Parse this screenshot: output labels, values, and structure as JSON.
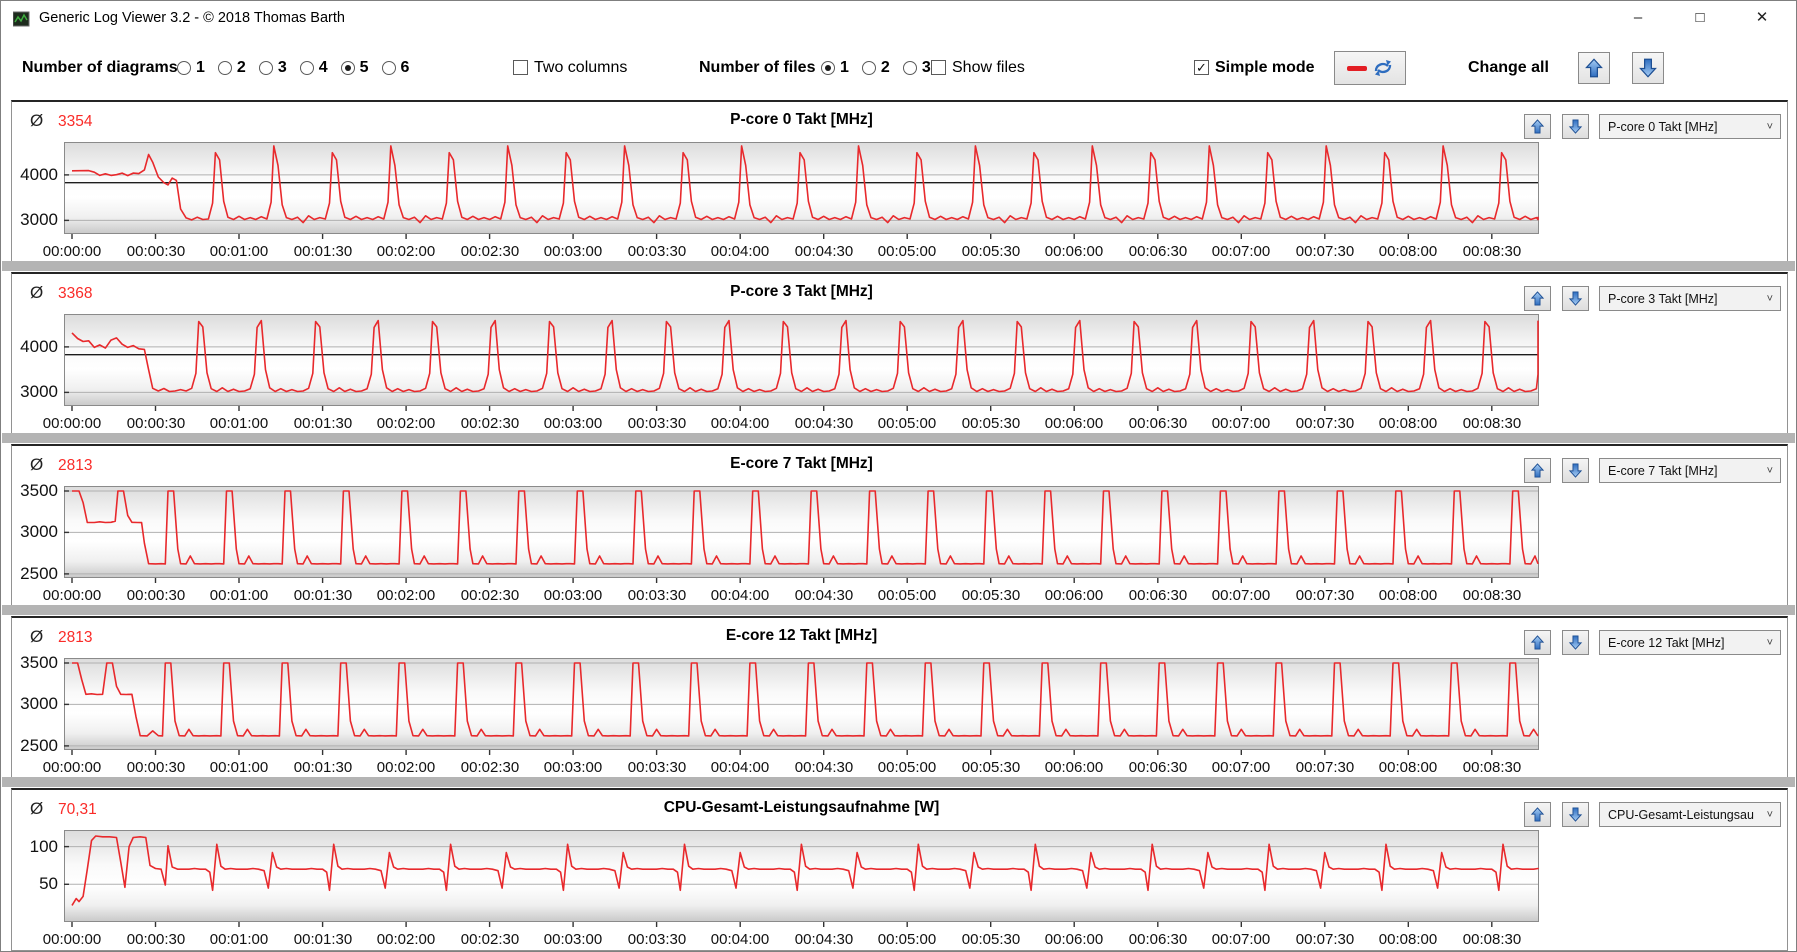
{
  "window": {
    "title": "Generic Log Viewer 3.2 - © 2018 Thomas Barth",
    "controls": {
      "minimize": "–",
      "maximize": "□",
      "close": "✕"
    }
  },
  "toolbar": {
    "diagrams_label": "Number of diagrams",
    "diagram_options": [
      "1",
      "2",
      "3",
      "4",
      "5",
      "6"
    ],
    "diagram_selected": "5",
    "two_columns_label": "Two columns",
    "two_columns_checked": false,
    "files_label": "Number of files",
    "file_options": [
      "1",
      "2",
      "3"
    ],
    "file_selected": "1",
    "show_files_label": "Show files",
    "show_files_checked": false,
    "simple_mode_label": "Simple mode",
    "simple_mode_checked": true,
    "check_glyph": "✓",
    "change_all_label": "Change all"
  },
  "colors": {
    "series_red": "#e8292c",
    "average_red": "#fa2b28",
    "arrow_blue_light": "#9cc6f2",
    "arrow_blue_dark": "#2e6dbf",
    "arrow_outline": "#1e4f93",
    "grid_gray": "#b0b0b0",
    "marker_black": "#1c1c1c",
    "plot_border": "#8a8a8a",
    "tick_black": "#333333"
  },
  "time_axis": {
    "tick_interval_s": 30,
    "tick_labels": [
      "00:00:00",
      "00:00:30",
      "00:01:00",
      "00:01:30",
      "00:02:00",
      "00:02:30",
      "00:03:00",
      "00:03:30",
      "00:04:00",
      "00:04:30",
      "00:05:00",
      "00:05:30",
      "00:06:00",
      "00:06:30",
      "00:07:00",
      "00:07:30",
      "00:08:00",
      "00:08:30"
    ]
  },
  "chart_data": [
    {
      "type": "line",
      "title": "P-core 0 Takt [MHz]",
      "dropdown_value": "P-core 0 Takt [MHz]",
      "avg_symbol": "Ø",
      "avg": "3354",
      "y_ticks": [
        4000,
        3000
      ],
      "y_range": [
        2700,
        4725
      ],
      "marker_line": 3830,
      "x_tick_labels": [
        "00:00:00",
        "00:00:30",
        "00:01:00",
        "00:01:30",
        "00:02:00",
        "00:02:30",
        "00:03:00",
        "00:03:30",
        "00:04:00",
        "00:04:30",
        "00:05:00",
        "00:05:30",
        "00:06:00",
        "00:06:30",
        "00:07:00",
        "00:07:30",
        "00:08:00",
        "00:08:30"
      ],
      "series": {
        "intro": [
          [
            0,
            4090
          ],
          [
            6,
            4095
          ],
          [
            8,
            4060
          ],
          [
            10,
            3990
          ],
          [
            12,
            4025
          ],
          [
            14,
            3990
          ],
          [
            16,
            4005
          ],
          [
            18,
            4040
          ],
          [
            20,
            3985
          ],
          [
            22,
            4040
          ],
          [
            24,
            4030
          ],
          [
            26,
            4110
          ],
          [
            27.5,
            4450
          ],
          [
            29,
            4280
          ],
          [
            31,
            3955
          ],
          [
            33,
            3830
          ],
          [
            34.5,
            3780
          ],
          [
            36,
            3930
          ],
          [
            37.5,
            3880
          ],
          [
            39,
            3250
          ],
          [
            41,
            3055
          ],
          [
            43,
            3010
          ],
          [
            45,
            3070
          ],
          [
            47,
            3020
          ],
          [
            49,
            3030
          ]
        ],
        "cycle": [
          [
            0,
            3030
          ],
          [
            1.5,
            3380
          ],
          [
            2.5,
            4490
          ],
          [
            4,
            4330
          ],
          [
            5.5,
            3420
          ],
          [
            7,
            3070
          ],
          [
            9,
            3020
          ],
          [
            11,
            3090
          ],
          [
            13,
            3020
          ],
          [
            15,
            3060
          ],
          [
            17,
            3020
          ],
          [
            19,
            3080
          ],
          [
            21,
            3030
          ],
          [
            22.5,
            3400
          ],
          [
            23.5,
            4640
          ],
          [
            25,
            4210
          ],
          [
            26.5,
            3340
          ],
          [
            28,
            3060
          ],
          [
            30,
            3020
          ],
          [
            32,
            3070
          ],
          [
            34,
            2950
          ],
          [
            36,
            3100
          ],
          [
            38,
            3020
          ],
          [
            40,
            3060
          ],
          [
            42,
            3030
          ]
        ],
        "period": 42,
        "repeats": 12
      }
    },
    {
      "type": "line",
      "title": "P-core 3 Takt [MHz]",
      "dropdown_value": "P-core 3 Takt [MHz]",
      "avg_symbol": "Ø",
      "avg": "3368",
      "y_ticks": [
        4000,
        3000
      ],
      "y_range": [
        2700,
        4725
      ],
      "marker_line": 3830,
      "x_tick_labels": [
        "00:00:00",
        "00:00:30",
        "00:01:00",
        "00:01:30",
        "00:02:00",
        "00:02:30",
        "00:03:00",
        "00:03:30",
        "00:04:00",
        "00:04:30",
        "00:05:00",
        "00:05:30",
        "00:06:00",
        "00:06:30",
        "00:07:00",
        "00:07:30",
        "00:08:00",
        "00:08:30"
      ],
      "series": {
        "intro": [
          [
            0,
            4310
          ],
          [
            2,
            4185
          ],
          [
            4,
            4120
          ],
          [
            6,
            4135
          ],
          [
            8,
            3990
          ],
          [
            10,
            4045
          ],
          [
            12,
            3975
          ],
          [
            14,
            4150
          ],
          [
            16,
            4200
          ],
          [
            18,
            4060
          ],
          [
            20,
            3990
          ],
          [
            22,
            4030
          ],
          [
            24,
            3960
          ],
          [
            26,
            3945
          ],
          [
            27.5,
            3500
          ],
          [
            29,
            3090
          ],
          [
            31,
            3030
          ],
          [
            33,
            3085
          ],
          [
            35,
            3020
          ],
          [
            37,
            3030
          ],
          [
            39,
            3060
          ],
          [
            41,
            3030
          ]
        ],
        "cycle": [
          [
            0,
            3030
          ],
          [
            2,
            3090
          ],
          [
            3.5,
            3420
          ],
          [
            4.5,
            4560
          ],
          [
            6,
            4440
          ],
          [
            7.5,
            3430
          ],
          [
            9,
            3080
          ],
          [
            11,
            3020
          ],
          [
            13,
            3100
          ],
          [
            15,
            3020
          ],
          [
            17,
            3070
          ],
          [
            19,
            3020
          ],
          [
            21,
            3030
          ],
          [
            23,
            3080
          ],
          [
            24.5,
            3400
          ],
          [
            25.5,
            4430
          ],
          [
            27,
            4580
          ],
          [
            28.5,
            3500
          ],
          [
            30,
            3100
          ],
          [
            32,
            3020
          ],
          [
            34,
            3080
          ],
          [
            36,
            3020
          ],
          [
            38,
            3060
          ],
          [
            40,
            3020
          ],
          [
            42,
            3030
          ]
        ],
        "period": 42,
        "repeats": 12
      }
    },
    {
      "type": "line",
      "title": "E-core 7 Takt [MHz]",
      "dropdown_value": "E-core 7 Takt [MHz]",
      "avg_symbol": "Ø",
      "avg": "2813",
      "y_ticks": [
        3500,
        3000,
        2500
      ],
      "y_range": [
        2450,
        3560
      ],
      "marker_line": null,
      "x_tick_labels": [
        "00:00:00",
        "00:00:30",
        "00:01:00",
        "00:01:30",
        "00:02:00",
        "00:02:30",
        "00:03:00",
        "00:03:30",
        "00:04:00",
        "00:04:30",
        "00:05:00",
        "00:05:30",
        "00:06:00",
        "00:06:30",
        "00:07:00",
        "00:07:30",
        "00:08:00",
        "00:08:30"
      ],
      "series": {
        "intro": [
          [
            0,
            3500
          ],
          [
            2.5,
            3500
          ],
          [
            4,
            3360
          ],
          [
            5.5,
            3120
          ],
          [
            8,
            3120
          ],
          [
            10,
            3128
          ],
          [
            12,
            3120
          ],
          [
            14,
            3122
          ],
          [
            15.5,
            3135
          ],
          [
            16.5,
            3500
          ],
          [
            18.5,
            3500
          ],
          [
            20,
            3205
          ],
          [
            21.5,
            3122
          ],
          [
            23.5,
            3120
          ],
          [
            25,
            3118
          ],
          [
            26,
            2870
          ],
          [
            27.5,
            2622
          ],
          [
            30,
            2620
          ],
          [
            32,
            2622
          ]
        ],
        "cycle": [
          [
            0,
            2622
          ],
          [
            1.5,
            2620
          ],
          [
            2.5,
            3500
          ],
          [
            4.5,
            3500
          ],
          [
            6,
            2800
          ],
          [
            7,
            2622
          ],
          [
            9,
            2620
          ],
          [
            10.5,
            2715
          ],
          [
            12,
            2622
          ],
          [
            14,
            2620
          ],
          [
            16,
            2622
          ],
          [
            18,
            2620
          ],
          [
            19.5,
            2622
          ],
          [
            21,
            2622
          ]
        ],
        "period": 21,
        "repeats": 24
      }
    },
    {
      "type": "line",
      "title": "E-core 12 Takt [MHz]",
      "dropdown_value": "E-core 12 Takt [MHz]",
      "avg_symbol": "Ø",
      "avg": "2813",
      "y_ticks": [
        3500,
        3000,
        2500
      ],
      "y_range": [
        2450,
        3560
      ],
      "marker_line": null,
      "x_tick_labels": [
        "00:00:00",
        "00:00:30",
        "00:01:00",
        "00:01:30",
        "00:02:00",
        "00:02:30",
        "00:03:00",
        "00:03:30",
        "00:04:00",
        "00:04:30",
        "00:05:00",
        "00:05:30",
        "00:06:00",
        "00:06:30",
        "00:07:00",
        "00:07:30",
        "00:08:00",
        "00:08:30"
      ],
      "series": {
        "intro": [
          [
            0,
            3500
          ],
          [
            2,
            3500
          ],
          [
            3.5,
            3300
          ],
          [
            5,
            3122
          ],
          [
            7,
            3128
          ],
          [
            9,
            3120
          ],
          [
            11,
            3122
          ],
          [
            12.5,
            3500
          ],
          [
            14.5,
            3500
          ],
          [
            16,
            3220
          ],
          [
            17.5,
            3122
          ],
          [
            19.5,
            3120
          ],
          [
            21.5,
            3122
          ],
          [
            23,
            2850
          ],
          [
            24.5,
            2622
          ],
          [
            27,
            2620
          ],
          [
            29,
            2680
          ],
          [
            31,
            2622
          ]
        ],
        "cycle": [
          [
            0,
            2622
          ],
          [
            1.5,
            2620
          ],
          [
            2.5,
            3500
          ],
          [
            4.5,
            3500
          ],
          [
            6,
            2800
          ],
          [
            7.5,
            2622
          ],
          [
            9.5,
            2620
          ],
          [
            11,
            2700
          ],
          [
            12.5,
            2622
          ],
          [
            14.5,
            2620
          ],
          [
            16.5,
            2622
          ],
          [
            18.5,
            2620
          ],
          [
            21,
            2622
          ]
        ],
        "period": 21,
        "repeats": 24
      }
    },
    {
      "type": "line",
      "title": "CPU-Gesamt-Leistungsaufnahme [W]",
      "dropdown_value": "CPU-Gesamt-Leistungsau",
      "avg_symbol": "Ø",
      "avg": "70,31",
      "y_ticks": [
        100,
        50
      ],
      "y_range": [
        0,
        122
      ],
      "marker_line": null,
      "x_tick_labels": [
        "00:00:00",
        "00:00:30",
        "00:01:00",
        "00:01:30",
        "00:02:00",
        "00:02:30",
        "00:03:00",
        "00:03:30",
        "00:04:00",
        "00:04:30",
        "00:05:00",
        "00:05:30",
        "00:06:00",
        "00:06:30",
        "00:07:00",
        "00:07:30",
        "00:08:00",
        "00:08:30"
      ],
      "series": {
        "intro": [
          [
            0,
            22
          ],
          [
            1.5,
            31
          ],
          [
            2.5,
            27
          ],
          [
            4,
            34
          ],
          [
            5.5,
            70
          ],
          [
            7,
            108
          ],
          [
            8.5,
            114
          ],
          [
            11,
            113
          ],
          [
            13.5,
            113
          ],
          [
            16,
            112
          ],
          [
            17.5,
            80
          ],
          [
            19,
            46
          ],
          [
            20.5,
            100
          ],
          [
            22,
            112
          ],
          [
            24.5,
            113
          ],
          [
            26.5,
            112
          ],
          [
            28,
            75
          ],
          [
            30,
            71
          ],
          [
            32,
            70
          ],
          [
            33.5,
            49
          ],
          [
            34.5,
            101
          ],
          [
            36,
            73
          ],
          [
            38,
            70
          ],
          [
            40,
            70
          ]
        ],
        "cycle": [
          [
            0,
            70
          ],
          [
            2,
            70
          ],
          [
            4,
            71
          ],
          [
            6,
            70
          ],
          [
            8,
            70
          ],
          [
            9.5,
            66
          ],
          [
            10.5,
            42
          ],
          [
            12,
            103
          ],
          [
            13.5,
            74
          ],
          [
            15,
            70
          ],
          [
            17,
            71
          ],
          [
            19,
            70
          ],
          [
            21,
            70
          ],
          [
            23,
            70
          ],
          [
            25,
            71
          ],
          [
            27,
            70
          ],
          [
            29,
            68
          ],
          [
            30.5,
            45
          ],
          [
            32,
            92
          ],
          [
            33.5,
            73
          ],
          [
            35,
            70
          ],
          [
            37,
            71
          ],
          [
            39,
            70
          ],
          [
            41,
            70
          ],
          [
            42,
            70
          ]
        ],
        "period": 42,
        "repeats": 12
      }
    }
  ]
}
